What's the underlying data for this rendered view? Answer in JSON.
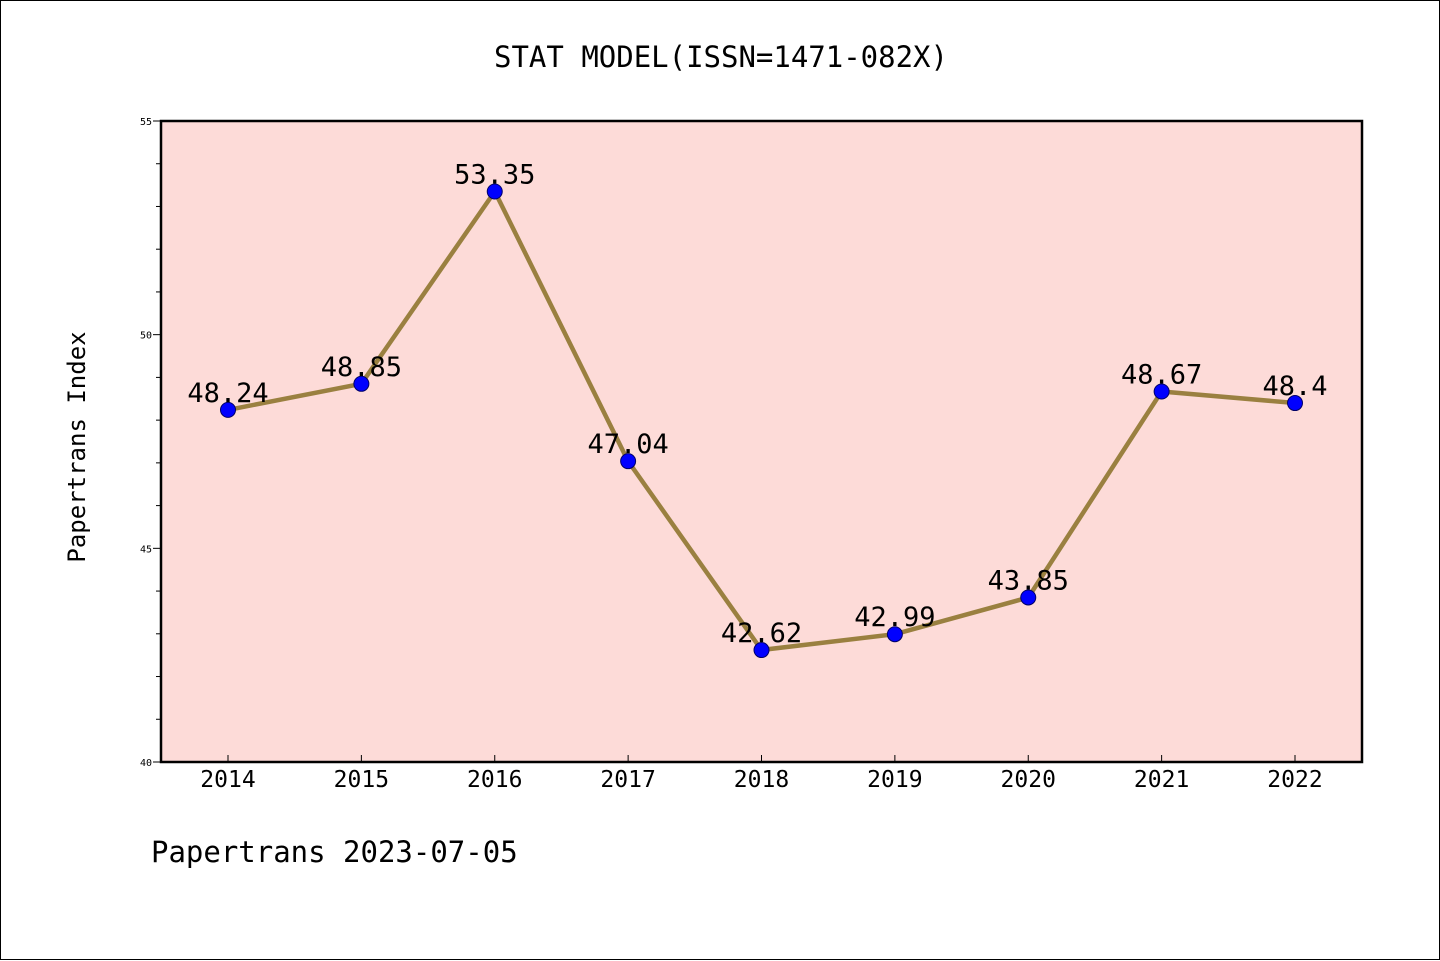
{
  "chart_data": {
    "type": "line",
    "title": "STAT MODEL(ISSN=1471-082X)",
    "xlabel": "",
    "ylabel": "Papertrans Index",
    "categories": [
      "2014",
      "2015",
      "2016",
      "2017",
      "2018",
      "2019",
      "2020",
      "2021",
      "2022"
    ],
    "series": [
      {
        "values": [
          48.24,
          48.85,
          53.35,
          47.04,
          42.62,
          42.99,
          43.85,
          48.67,
          48.4
        ],
        "labels": [
          "48.24",
          "48.85",
          "53.35",
          "47.04",
          "42.62",
          "42.99",
          "43.85",
          "48.67",
          "48.4"
        ]
      }
    ],
    "ylim": [
      40,
      55
    ],
    "yticks": [
      "40",
      "45",
      "50",
      "55"
    ],
    "grid": false,
    "colors": {
      "plot_background": "#fddbd8",
      "line": "#9a8040",
      "marker": "#0000ff"
    }
  },
  "footer": "Papertrans 2023-07-05"
}
